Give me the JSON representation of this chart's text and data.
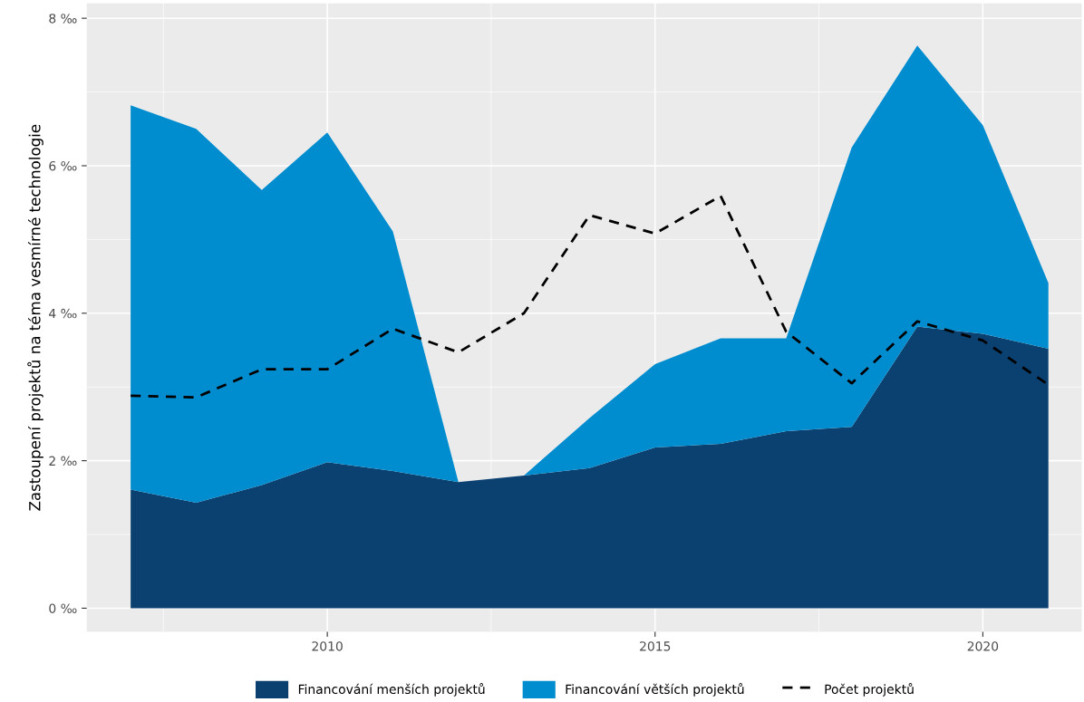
{
  "chart_data": {
    "type": "area",
    "ylabel": "Zastoupení projektů na téma vesmírné technologie",
    "stacked": true,
    "x": [
      2007,
      2008,
      2009,
      2010,
      2011,
      2012,
      2013,
      2014,
      2015,
      2016,
      2017,
      2018,
      2019,
      2020,
      2021
    ],
    "series": [
      {
        "name": "Financování menších projektů",
        "color": "#0b4170",
        "values": [
          1.61,
          1.43,
          1.67,
          1.98,
          1.86,
          1.71,
          1.8,
          1.9,
          2.18,
          2.23,
          2.4,
          2.46,
          3.82,
          3.72,
          3.52
        ]
      },
      {
        "name": "Financování větších projektů",
        "color": "#008dd0",
        "values": [
          5.21,
          5.07,
          4.0,
          4.47,
          3.25,
          0,
          0,
          0.68,
          1.13,
          1.43,
          1.26,
          3.79,
          3.81,
          2.83,
          0.89
        ]
      },
      {
        "name": "Počet projektů",
        "color": "#000000",
        "type": "line",
        "line_style": "dashed",
        "values": [
          2.88,
          2.86,
          3.24,
          3.24,
          3.79,
          3.47,
          4.0,
          5.33,
          5.08,
          5.59,
          3.75,
          3.05,
          3.89,
          3.63,
          3.03
        ]
      }
    ],
    "xlim": [
      2006.33,
      2021.51
    ],
    "xticks": [
      2010,
      2015,
      2020
    ],
    "ylim": [
      -0.32,
      8.2
    ],
    "yticks": [
      {
        "value": 0,
        "label": "0 ‰"
      },
      {
        "value": 2,
        "label": "2 ‰"
      },
      {
        "value": 4,
        "label": "4 ‰"
      },
      {
        "value": 6,
        "label": "6 ‰"
      },
      {
        "value": 8,
        "label": "8 ‰"
      }
    ],
    "grid": true,
    "legend": "bottom"
  }
}
